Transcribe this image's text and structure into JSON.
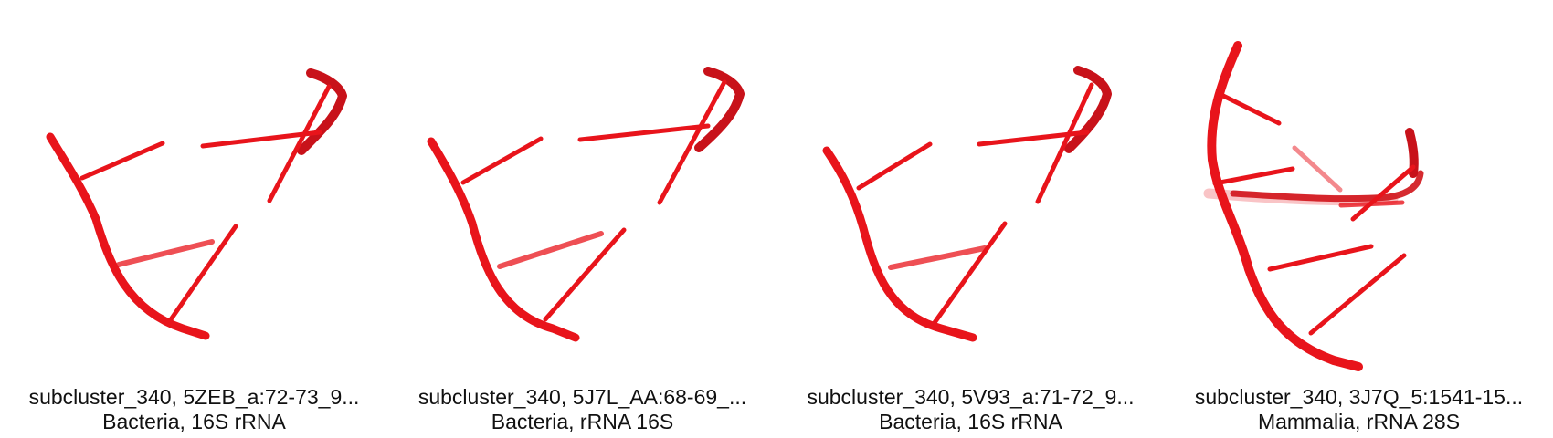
{
  "colors": {
    "rna": "#e8141b",
    "rna_dark": "#b30f14",
    "text": "#111111"
  },
  "panels": [
    {
      "title": "subcluster_340, 5ZEB_a:72-73_9...",
      "subtitle": "Bacteria, 16S rRNA"
    },
    {
      "title": "subcluster_340, 5J7L_AA:68-69_...",
      "subtitle": "Bacteria, rRNA 16S"
    },
    {
      "title": "subcluster_340, 5V93_a:71-72_9...",
      "subtitle": "Bacteria, 16S rRNA"
    },
    {
      "title": "subcluster_340, 3J7Q_5:1541-15...",
      "subtitle": "Mammalia, rRNA 28S"
    }
  ]
}
